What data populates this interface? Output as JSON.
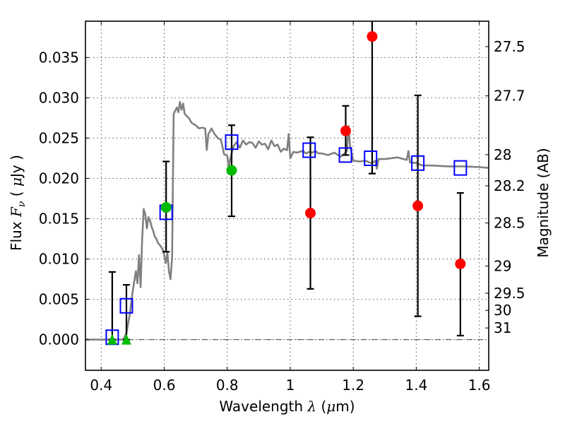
{
  "chart_data": {
    "type": "scatter",
    "title": "",
    "xlabel": "Wavelength  λ (μm)",
    "ylabel": "Flux  F_ν  ( μJy )",
    "ylabel_parts": {
      "prefix": "Flux ",
      "symbol": "F",
      "subscript": "ν",
      "unit_open": "  ( ",
      "unit_mu": "μ",
      "unit_rest": "Jy )"
    },
    "xlabel_parts": {
      "prefix": "Wavelength  ",
      "symbol": "λ",
      "unit_open": " (",
      "unit_mu": "μ",
      "unit_rest": "m)"
    },
    "y2label": "Magnitude (AB)",
    "xlim": [
      0.35,
      1.63
    ],
    "ylim": [
      -0.0038,
      0.0395
    ],
    "grid": true,
    "x_ticks": [
      0.4,
      0.6,
      0.8,
      1.0,
      1.2,
      1.4,
      1.6
    ],
    "x_tick_labels": [
      "0.4",
      "0.6",
      "0.8",
      "1",
      "1.2",
      "1.4",
      "1.6"
    ],
    "y_ticks": [
      0.0,
      0.005,
      0.01,
      0.015,
      0.02,
      0.025,
      0.03,
      0.035
    ],
    "y_tick_labels": [
      "0.000",
      "0.005",
      "0.010",
      "0.015",
      "0.020",
      "0.025",
      "0.030",
      "0.035"
    ],
    "y2_ticks": [
      {
        "label": "27.5",
        "flux": 0.03635
      },
      {
        "label": "27.7",
        "flux": 0.03024
      },
      {
        "label": "28",
        "flux": 0.02294
      },
      {
        "label": "28.2",
        "flux": 0.01908
      },
      {
        "label": "28.5",
        "flux": 0.01447
      },
      {
        "label": "29",
        "flux": 0.00913
      },
      {
        "label": "29.5",
        "flux": 0.00576
      },
      {
        "label": "30",
        "flux": 0.00363
      },
      {
        "label": "31",
        "flux": 0.00145
      }
    ],
    "series": [
      {
        "name": "model-spectrum",
        "kind": "line",
        "color": "#808080",
        "x": [
          0.35,
          0.44,
          0.46,
          0.47,
          0.48,
          0.49,
          0.5,
          0.51,
          0.515,
          0.52,
          0.525,
          0.53,
          0.535,
          0.54,
          0.545,
          0.55,
          0.555,
          0.56,
          0.565,
          0.57,
          0.575,
          0.58,
          0.585,
          0.59,
          0.595,
          0.6,
          0.605,
          0.61,
          0.615,
          0.62,
          0.625,
          0.63,
          0.64,
          0.645,
          0.65,
          0.655,
          0.66,
          0.665,
          0.67,
          0.675,
          0.68,
          0.685,
          0.69,
          0.7,
          0.71,
          0.72,
          0.73,
          0.735,
          0.74,
          0.745,
          0.75,
          0.76,
          0.77,
          0.78,
          0.79,
          0.8,
          0.805,
          0.81,
          0.82,
          0.83,
          0.84,
          0.85,
          0.86,
          0.87,
          0.88,
          0.89,
          0.9,
          0.91,
          0.92,
          0.93,
          0.94,
          0.95,
          0.96,
          0.97,
          0.98,
          0.99,
          0.995,
          1.0,
          1.01,
          1.02,
          1.03,
          1.04,
          1.05,
          1.06,
          1.07,
          1.08,
          1.09,
          1.1,
          1.12,
          1.14,
          1.16,
          1.17,
          1.18,
          1.185,
          1.19,
          1.2,
          1.22,
          1.24,
          1.25,
          1.26,
          1.27,
          1.275,
          1.28,
          1.3,
          1.32,
          1.34,
          1.36,
          1.37,
          1.375,
          1.38,
          1.4,
          1.42,
          1.45,
          1.5,
          1.55,
          1.6,
          1.63
        ],
        "y": [
          0.0,
          0.0,
          0.0,
          0.0,
          0.0008,
          0.003,
          0.006,
          0.0085,
          0.007,
          0.0105,
          0.0065,
          0.0125,
          0.0162,
          0.0155,
          0.0138,
          0.0152,
          0.0148,
          0.014,
          0.0135,
          0.0128,
          0.0125,
          0.012,
          0.0118,
          0.0115,
          0.0112,
          0.0105,
          0.0095,
          0.0108,
          0.0085,
          0.0075,
          0.0102,
          0.028,
          0.0288,
          0.0282,
          0.0295,
          0.0285,
          0.0293,
          0.028,
          0.0278,
          0.0276,
          0.0274,
          0.027,
          0.0268,
          0.0266,
          0.0262,
          0.0263,
          0.0262,
          0.0235,
          0.0255,
          0.0258,
          0.0262,
          0.0255,
          0.025,
          0.0248,
          0.023,
          0.0228,
          0.0215,
          0.0225,
          0.024,
          0.0245,
          0.0238,
          0.0247,
          0.0242,
          0.0245,
          0.0244,
          0.0238,
          0.0246,
          0.0242,
          0.0243,
          0.0236,
          0.0247,
          0.024,
          0.0242,
          0.0233,
          0.0237,
          0.0235,
          0.0255,
          0.0225,
          0.0233,
          0.0232,
          0.0233,
          0.0234,
          0.0231,
          0.0233,
          0.0232,
          0.0234,
          0.0231,
          0.0231,
          0.0229,
          0.0232,
          0.0227,
          0.023,
          0.0234,
          0.0265,
          0.024,
          0.0222,
          0.0221,
          0.0222,
          0.022,
          0.0219,
          0.0222,
          0.0212,
          0.0224,
          0.0224,
          0.0225,
          0.0226,
          0.0224,
          0.0223,
          0.0234,
          0.022,
          0.0219,
          0.0216,
          0.0216,
          0.0215,
          0.0215,
          0.0214,
          0.0213
        ]
      },
      {
        "name": "model-photometry",
        "kind": "marker",
        "marker": "open-square",
        "color": "#0000ff",
        "x": [
          0.435,
          0.48,
          0.606,
          0.814,
          1.06,
          1.175,
          1.255,
          1.405,
          1.54
        ],
        "y": [
          0.0003,
          0.0042,
          0.0158,
          0.0245,
          0.0235,
          0.0229,
          0.0225,
          0.0219,
          0.0213
        ]
      },
      {
        "name": "detections",
        "kind": "errorbar",
        "marker": "circle",
        "color": "#00bb00",
        "x": [
          0.606,
          0.814
        ],
        "y": [
          0.0164,
          0.021
        ],
        "yerr_low": [
          0.0109,
          0.0153
        ],
        "yerr_high": [
          0.0221,
          0.0266
        ]
      },
      {
        "name": "upper-limits",
        "kind": "errorbar",
        "marker": "triangle",
        "color": "#00bb00",
        "x": [
          0.435,
          0.48
        ],
        "y": [
          0.0,
          0.0
        ],
        "yerr_low": [
          0.0,
          0.0
        ],
        "yerr_high": [
          0.0084,
          0.0068
        ]
      },
      {
        "name": "low-significance",
        "kind": "errorbar",
        "marker": "circle",
        "color": "#ff0000",
        "x": [
          1.064,
          1.176,
          1.26,
          1.405,
          1.54
        ],
        "y": [
          0.0157,
          0.0259,
          0.0376,
          0.0166,
          0.0094
        ],
        "yerr_low": [
          0.0063,
          0.0229,
          0.0206,
          0.0029,
          0.0005
        ],
        "yerr_high": [
          0.0251,
          0.029,
          0.042,
          0.0303,
          0.0182
        ]
      }
    ]
  }
}
